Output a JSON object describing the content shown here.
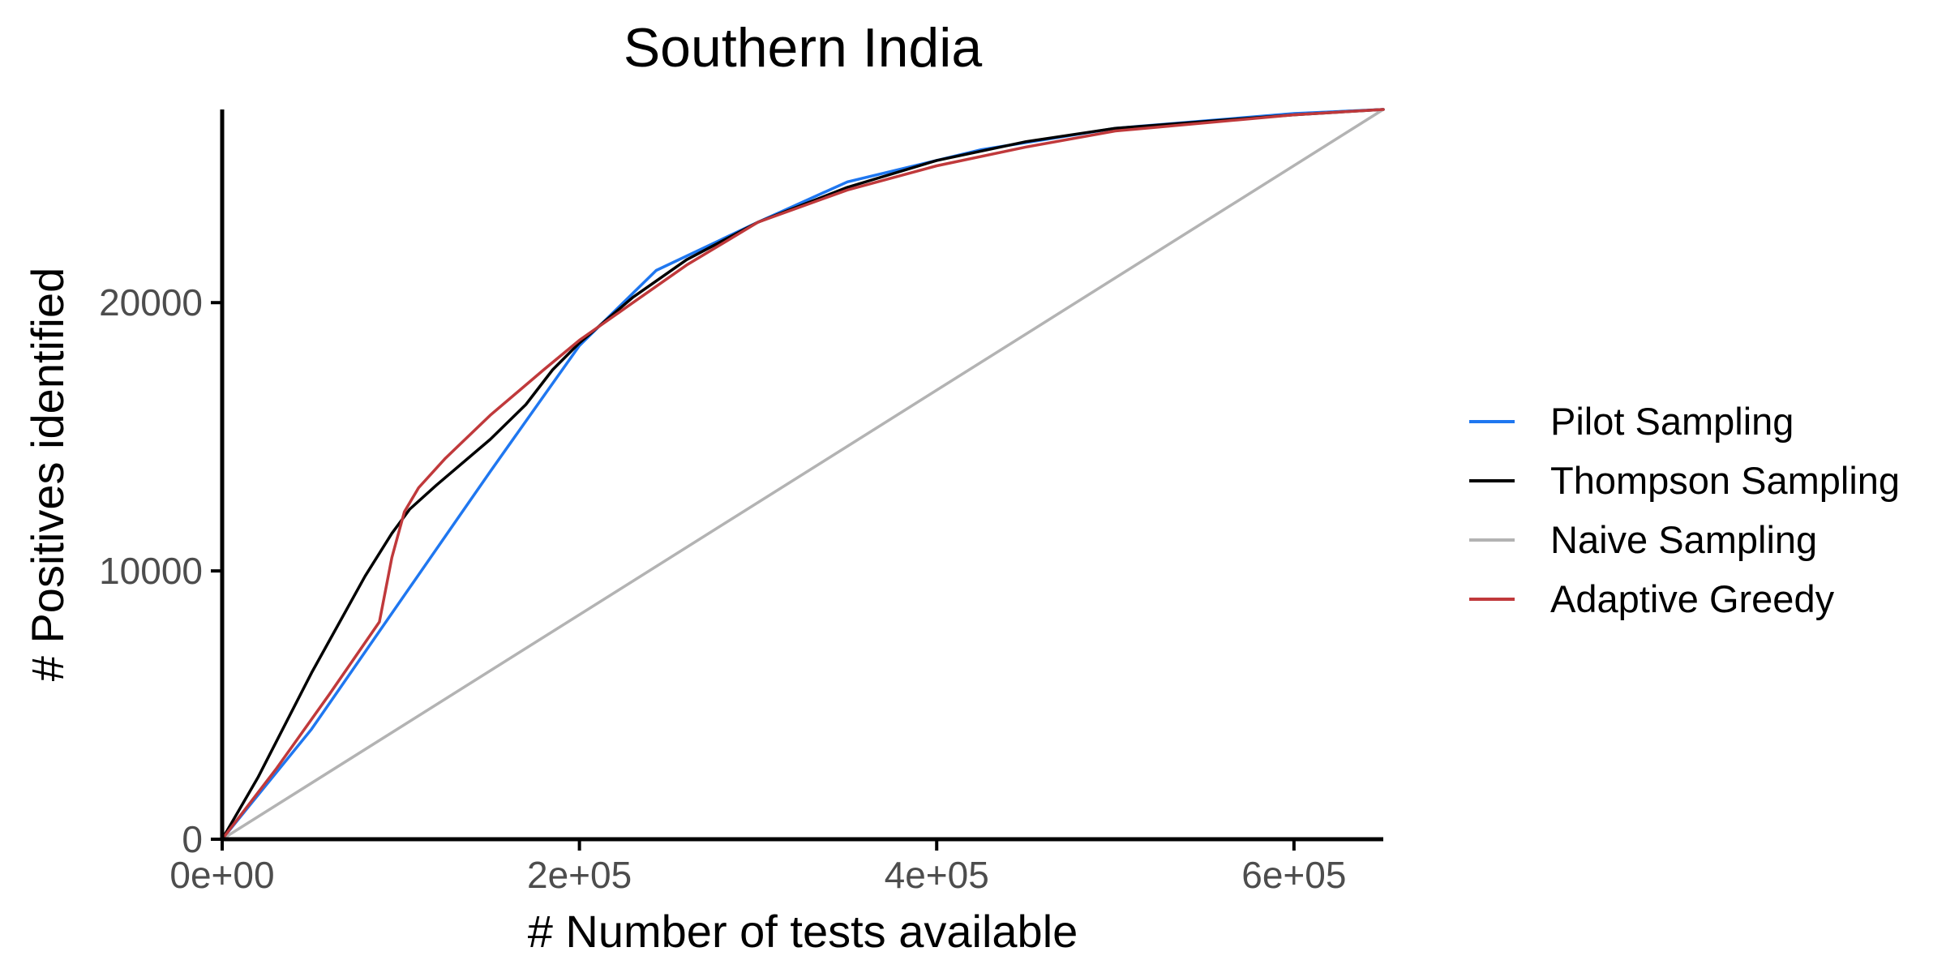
{
  "chart_data": {
    "type": "line",
    "title": "Southern India",
    "xlabel": "# Number of tests available",
    "ylabel": "# Positives identified",
    "xlim": [
      0,
      650000
    ],
    "ylim": [
      0,
      27200
    ],
    "x_ticks": [
      {
        "value": 0,
        "label": "0e+00"
      },
      {
        "value": 200000,
        "label": "2e+05"
      },
      {
        "value": 400000,
        "label": "4e+05"
      },
      {
        "value": 600000,
        "label": "6e+05"
      }
    ],
    "y_ticks": [
      {
        "value": 0,
        "label": "0"
      },
      {
        "value": 10000,
        "label": "10000"
      },
      {
        "value": 20000,
        "label": "20000"
      }
    ],
    "grid": false,
    "legend_position": "right",
    "series": [
      {
        "name": "Pilot Sampling",
        "color": "#1f77f0",
        "points": [
          [
            0,
            0
          ],
          [
            50000,
            4100
          ],
          [
            100000,
            8900
          ],
          [
            150000,
            13700
          ],
          [
            200000,
            18400
          ],
          [
            243000,
            21200
          ],
          [
            300000,
            23000
          ],
          [
            350000,
            24500
          ],
          [
            425000,
            25700
          ],
          [
            500000,
            26500
          ],
          [
            600000,
            27050
          ],
          [
            650000,
            27200
          ]
        ]
      },
      {
        "name": "Thompson Sampling",
        "color": "#000000",
        "points": [
          [
            0,
            0
          ],
          [
            20000,
            2300
          ],
          [
            50000,
            6200
          ],
          [
            80000,
            9800
          ],
          [
            95000,
            11400
          ],
          [
            105000,
            12300
          ],
          [
            120000,
            13200
          ],
          [
            150000,
            14900
          ],
          [
            170000,
            16200
          ],
          [
            185000,
            17500
          ],
          [
            200000,
            18500
          ],
          [
            230000,
            20200
          ],
          [
            260000,
            21600
          ],
          [
            300000,
            23000
          ],
          [
            350000,
            24300
          ],
          [
            400000,
            25300
          ],
          [
            450000,
            26000
          ],
          [
            500000,
            26500
          ],
          [
            600000,
            27000
          ],
          [
            650000,
            27200
          ]
        ]
      },
      {
        "name": "Naive Sampling",
        "color": "#b3b3b3",
        "points": [
          [
            0,
            0
          ],
          [
            650000,
            27200
          ]
        ]
      },
      {
        "name": "Adaptive Greedy",
        "color": "#c0393b",
        "points": [
          [
            0,
            0
          ],
          [
            30000,
            2600
          ],
          [
            60000,
            5400
          ],
          [
            88000,
            8100
          ],
          [
            95000,
            10500
          ],
          [
            102000,
            12200
          ],
          [
            110000,
            13100
          ],
          [
            125000,
            14200
          ],
          [
            150000,
            15800
          ],
          [
            180000,
            17500
          ],
          [
            200000,
            18600
          ],
          [
            230000,
            20000
          ],
          [
            260000,
            21400
          ],
          [
            300000,
            23000
          ],
          [
            350000,
            24200
          ],
          [
            400000,
            25100
          ],
          [
            450000,
            25800
          ],
          [
            500000,
            26400
          ],
          [
            600000,
            27000
          ],
          [
            650000,
            27200
          ]
        ]
      }
    ]
  }
}
